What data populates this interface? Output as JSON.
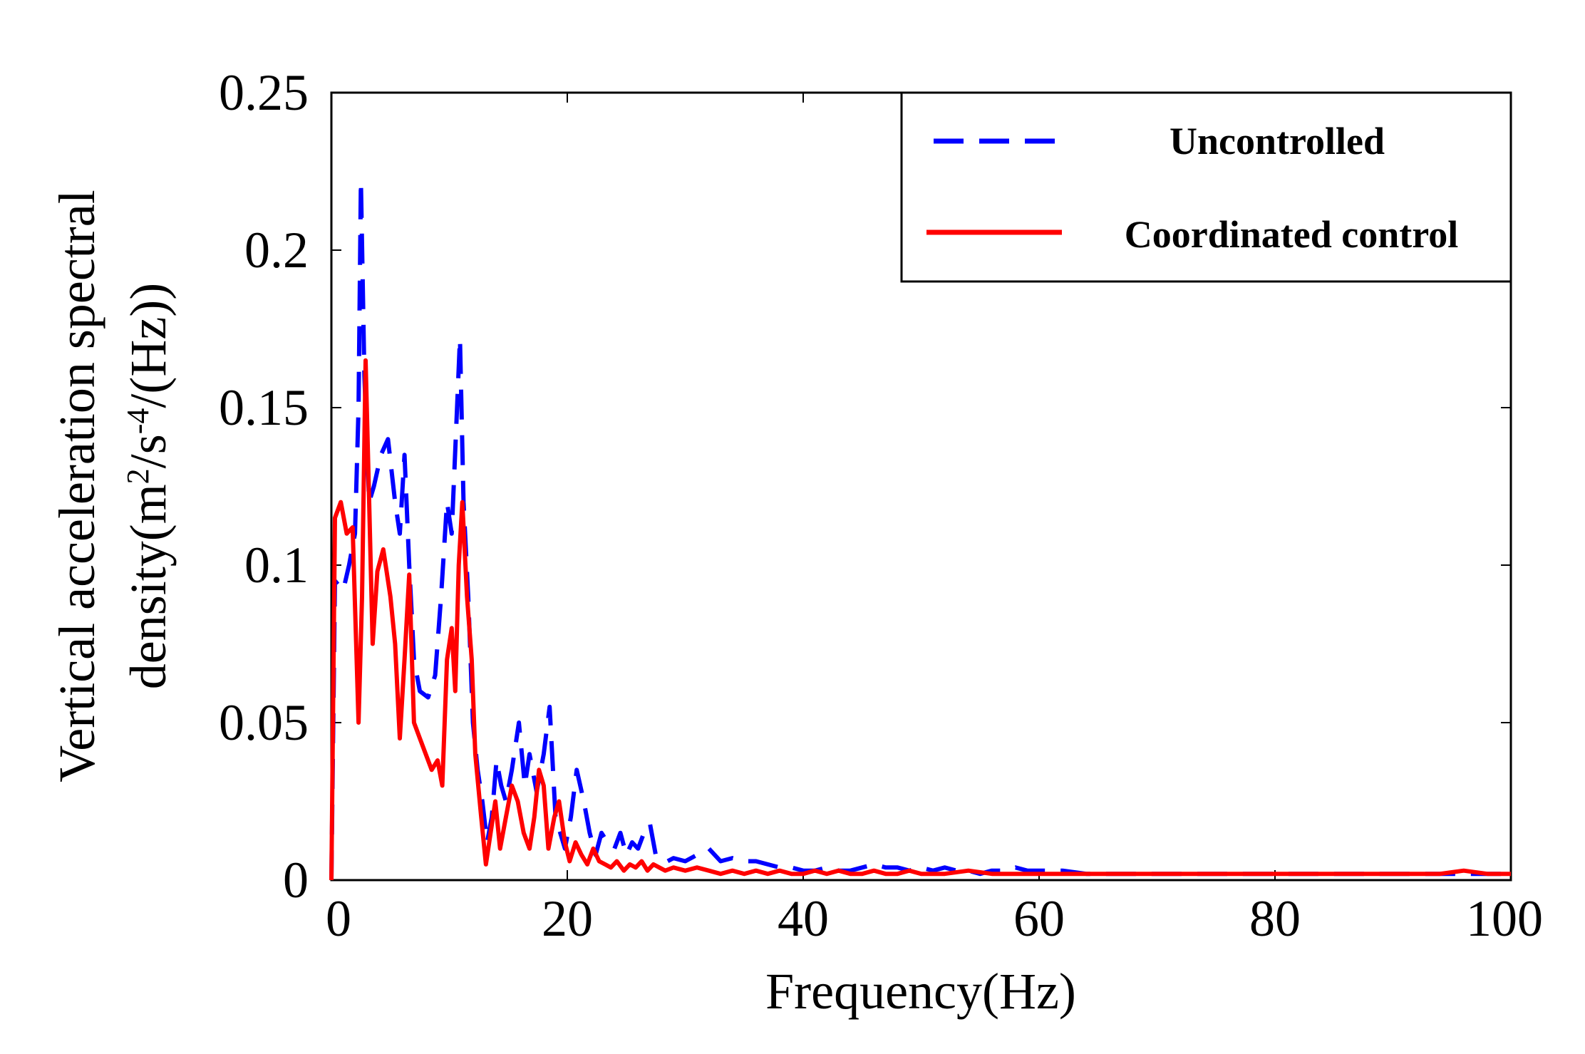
{
  "chart_data": {
    "type": "line",
    "title": "",
    "xlabel": "Frequency(Hz)",
    "ylabel_line1": "Vertical acceleration spectral",
    "ylabel_line2_prefix": "density(m",
    "ylabel_sup1": "2",
    "ylabel_mid": "/s",
    "ylabel_sup2": "-4",
    "ylabel_suffix": "/(Hz))",
    "xlim": [
      0,
      100
    ],
    "ylim": [
      0,
      0.25
    ],
    "x_ticks": [
      0,
      20,
      40,
      60,
      80,
      100
    ],
    "x_tick_labels": [
      "0",
      "20",
      "40",
      "60",
      "80",
      "100"
    ],
    "y_ticks": [
      0,
      0.05,
      0.1,
      0.15,
      0.2,
      0.25
    ],
    "y_tick_labels": [
      "0",
      "0.05",
      "0.1",
      "0.15",
      "0.2",
      "0.25"
    ],
    "legend_position": "top-right",
    "series": [
      {
        "name": "Uncontrolled",
        "color": "#0000ff",
        "style": "dashed",
        "points": [
          [
            0,
            0
          ],
          [
            0.3,
            0.095
          ],
          [
            1,
            0.092
          ],
          [
            1.5,
            0.1
          ],
          [
            2,
            0.11
          ],
          [
            2.3,
            0.15
          ],
          [
            2.5,
            0.222
          ],
          [
            2.8,
            0.16
          ],
          [
            3.2,
            0.12
          ],
          [
            3.6,
            0.125
          ],
          [
            4.2,
            0.135
          ],
          [
            4.8,
            0.14
          ],
          [
            5.4,
            0.12
          ],
          [
            5.8,
            0.11
          ],
          [
            6.2,
            0.135
          ],
          [
            6.6,
            0.1
          ],
          [
            7,
            0.07
          ],
          [
            7.5,
            0.06
          ],
          [
            8.2,
            0.058
          ],
          [
            8.8,
            0.065
          ],
          [
            9.3,
            0.09
          ],
          [
            9.8,
            0.12
          ],
          [
            10.2,
            0.11
          ],
          [
            10.6,
            0.145
          ],
          [
            10.9,
            0.172
          ],
          [
            11.2,
            0.12
          ],
          [
            11.6,
            0.09
          ],
          [
            12,
            0.05
          ],
          [
            12.4,
            0.035
          ],
          [
            12.8,
            0.025
          ],
          [
            13.2,
            0.012
          ],
          [
            13.6,
            0.02
          ],
          [
            14,
            0.038
          ],
          [
            14.4,
            0.03
          ],
          [
            14.8,
            0.025
          ],
          [
            15.3,
            0.035
          ],
          [
            15.9,
            0.05
          ],
          [
            16.4,
            0.03
          ],
          [
            16.8,
            0.04
          ],
          [
            17.4,
            0.028
          ],
          [
            18,
            0.04
          ],
          [
            18.5,
            0.055
          ],
          [
            19,
            0.02
          ],
          [
            19.4,
            0.015
          ],
          [
            19.8,
            0.01
          ],
          [
            20.3,
            0.02
          ],
          [
            20.8,
            0.035
          ],
          [
            21.4,
            0.025
          ],
          [
            21.9,
            0.015
          ],
          [
            22.4,
            0.008
          ],
          [
            22.9,
            0.015
          ],
          [
            23.4,
            0.012
          ],
          [
            24,
            0.01
          ],
          [
            24.5,
            0.015
          ],
          [
            25,
            0.008
          ],
          [
            25.5,
            0.012
          ],
          [
            26,
            0.01
          ],
          [
            26.5,
            0.015
          ],
          [
            27,
            0.018
          ],
          [
            27.5,
            0.008
          ],
          [
            28,
            0.006
          ],
          [
            28.5,
            0.006
          ],
          [
            29,
            0.007
          ],
          [
            30,
            0.006
          ],
          [
            31,
            0.008
          ],
          [
            32,
            0.01
          ],
          [
            33,
            0.006
          ],
          [
            34,
            0.007
          ],
          [
            35,
            0.006
          ],
          [
            36,
            0.006
          ],
          [
            37,
            0.005
          ],
          [
            38,
            0.004
          ],
          [
            39,
            0.004
          ],
          [
            40,
            0.003
          ],
          [
            41,
            0.003
          ],
          [
            42,
            0.004
          ],
          [
            43,
            0.003
          ],
          [
            44,
            0.003
          ],
          [
            45,
            0.004
          ],
          [
            46,
            0.005
          ],
          [
            47,
            0.004
          ],
          [
            48,
            0.004
          ],
          [
            49,
            0.003
          ],
          [
            50,
            0.004
          ],
          [
            51,
            0.003
          ],
          [
            52,
            0.004
          ],
          [
            53,
            0.003
          ],
          [
            54,
            0.003
          ],
          [
            55,
            0.002
          ],
          [
            56,
            0.003
          ],
          [
            57,
            0.003
          ],
          [
            58,
            0.004
          ],
          [
            59,
            0.003
          ],
          [
            60,
            0.003
          ],
          [
            62,
            0.003
          ],
          [
            64,
            0.002
          ],
          [
            66,
            0.002
          ],
          [
            68,
            0.002
          ],
          [
            70,
            0.002
          ],
          [
            72,
            0.002
          ],
          [
            74,
            0.002
          ],
          [
            76,
            0.002
          ],
          [
            78,
            0.002
          ],
          [
            80,
            0.002
          ],
          [
            82,
            0.002
          ],
          [
            84,
            0.002
          ],
          [
            86,
            0.002
          ],
          [
            88,
            0.002
          ],
          [
            90,
            0.002
          ],
          [
            92,
            0.002
          ],
          [
            94,
            0.002
          ],
          [
            96,
            0.002
          ],
          [
            98,
            0.002
          ],
          [
            100,
            0.002
          ]
        ]
      },
      {
        "name": "Coordinated control",
        "color": "#ff0000",
        "style": "solid",
        "points": [
          [
            0,
            0
          ],
          [
            0.3,
            0.115
          ],
          [
            0.8,
            0.12
          ],
          [
            1.3,
            0.11
          ],
          [
            1.8,
            0.112
          ],
          [
            2.3,
            0.05
          ],
          [
            2.6,
            0.09
          ],
          [
            2.9,
            0.165
          ],
          [
            3.2,
            0.12
          ],
          [
            3.5,
            0.075
          ],
          [
            3.9,
            0.098
          ],
          [
            4.4,
            0.105
          ],
          [
            5,
            0.09
          ],
          [
            5.4,
            0.075
          ],
          [
            5.8,
            0.045
          ],
          [
            6.2,
            0.07
          ],
          [
            6.6,
            0.097
          ],
          [
            7,
            0.05
          ],
          [
            7.5,
            0.045
          ],
          [
            8,
            0.04
          ],
          [
            8.5,
            0.035
          ],
          [
            9,
            0.038
          ],
          [
            9.4,
            0.03
          ],
          [
            9.8,
            0.07
          ],
          [
            10.2,
            0.08
          ],
          [
            10.5,
            0.06
          ],
          [
            10.8,
            0.1
          ],
          [
            11.1,
            0.12
          ],
          [
            11.5,
            0.09
          ],
          [
            11.9,
            0.07
          ],
          [
            12.2,
            0.04
          ],
          [
            12.7,
            0.02
          ],
          [
            13.1,
            0.005
          ],
          [
            13.5,
            0.015
          ],
          [
            13.9,
            0.025
          ],
          [
            14.3,
            0.01
          ],
          [
            14.8,
            0.02
          ],
          [
            15.3,
            0.03
          ],
          [
            15.8,
            0.025
          ],
          [
            16.3,
            0.015
          ],
          [
            16.8,
            0.01
          ],
          [
            17.2,
            0.02
          ],
          [
            17.6,
            0.035
          ],
          [
            18,
            0.03
          ],
          [
            18.4,
            0.01
          ],
          [
            18.9,
            0.02
          ],
          [
            19.3,
            0.025
          ],
          [
            19.8,
            0.012
          ],
          [
            20.2,
            0.006
          ],
          [
            20.7,
            0.012
          ],
          [
            21.2,
            0.008
          ],
          [
            21.7,
            0.005
          ],
          [
            22.2,
            0.01
          ],
          [
            22.7,
            0.006
          ],
          [
            23.2,
            0.005
          ],
          [
            23.7,
            0.004
          ],
          [
            24.2,
            0.006
          ],
          [
            24.8,
            0.003
          ],
          [
            25.3,
            0.005
          ],
          [
            25.8,
            0.004
          ],
          [
            26.3,
            0.006
          ],
          [
            26.8,
            0.003
          ],
          [
            27.3,
            0.005
          ],
          [
            27.8,
            0.004
          ],
          [
            28.3,
            0.003
          ],
          [
            29,
            0.004
          ],
          [
            30,
            0.003
          ],
          [
            31,
            0.004
          ],
          [
            32,
            0.003
          ],
          [
            33,
            0.002
          ],
          [
            34,
            0.003
          ],
          [
            35,
            0.002
          ],
          [
            36,
            0.003
          ],
          [
            37,
            0.002
          ],
          [
            38,
            0.003
          ],
          [
            39,
            0.002
          ],
          [
            40,
            0.002
          ],
          [
            41,
            0.003
          ],
          [
            42,
            0.002
          ],
          [
            43,
            0.003
          ],
          [
            44,
            0.002
          ],
          [
            45,
            0.002
          ],
          [
            46,
            0.003
          ],
          [
            47,
            0.002
          ],
          [
            48,
            0.002
          ],
          [
            49,
            0.003
          ],
          [
            50,
            0.002
          ],
          [
            52,
            0.002
          ],
          [
            54,
            0.003
          ],
          [
            56,
            0.002
          ],
          [
            58,
            0.002
          ],
          [
            60,
            0.002
          ],
          [
            62,
            0.002
          ],
          [
            64,
            0.002
          ],
          [
            66,
            0.002
          ],
          [
            68,
            0.002
          ],
          [
            70,
            0.002
          ],
          [
            72,
            0.002
          ],
          [
            74,
            0.002
          ],
          [
            76,
            0.002
          ],
          [
            78,
            0.002
          ],
          [
            80,
            0.002
          ],
          [
            82,
            0.002
          ],
          [
            84,
            0.002
          ],
          [
            86,
            0.002
          ],
          [
            88,
            0.002
          ],
          [
            90,
            0.002
          ],
          [
            92,
            0.002
          ],
          [
            94,
            0.002
          ],
          [
            96,
            0.003
          ],
          [
            98,
            0.002
          ],
          [
            100,
            0.002
          ]
        ]
      }
    ]
  }
}
